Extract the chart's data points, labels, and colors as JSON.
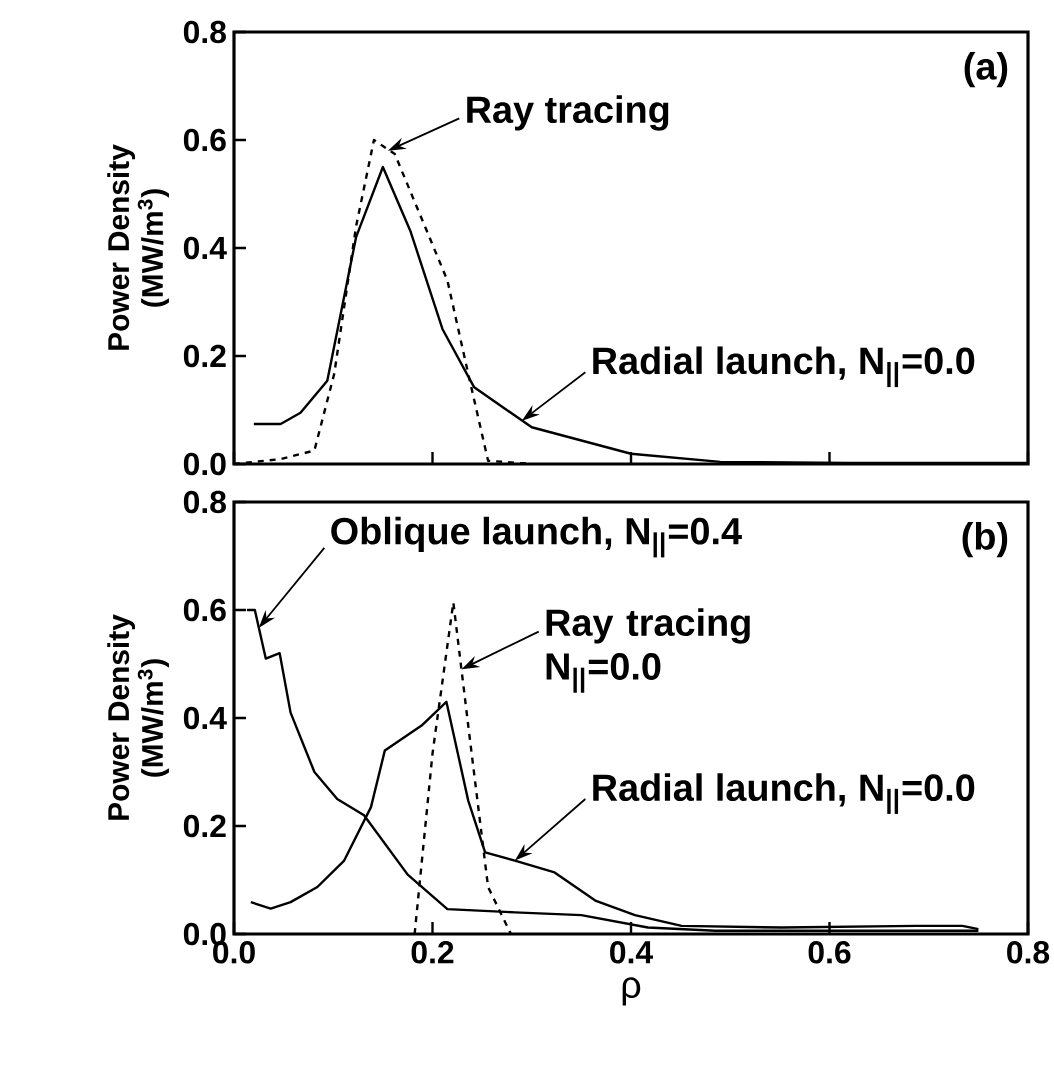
{
  "chart_data": [
    {
      "type": "line",
      "ylabel": "Power Density (MW/m$^{3}$)",
      "xlim": [
        0,
        0.8
      ],
      "ylim": [
        0,
        0.8
      ],
      "xticks": [
        0,
        0.2,
        0.4,
        0.6,
        0.8
      ],
      "yticks": [
        {
          "value": 0,
          "label": "0.0"
        },
        {
          "value": 0.2,
          "label": "0.2"
        },
        {
          "value": 0.4,
          "label": "0.4"
        },
        {
          "value": 0.6,
          "label": "0.6"
        },
        {
          "value": 0.8,
          "label": "0.8"
        }
      ],
      "tick_labels": "y",
      "series": [
        {
          "color": "#000000",
          "line_style": "solid",
          "x": [
            0.02,
            0.047,
            0.067,
            0.094,
            0.123,
            0.15,
            0.178,
            0.21,
            0.242,
            0.3,
            0.4,
            0.49,
            0.62,
            0.8
          ],
          "values": [
            0.074,
            0.074,
            0.095,
            0.154,
            0.42,
            0.55,
            0.43,
            0.25,
            0.142,
            0.068,
            0.019,
            0.004,
            0.002,
            0.002
          ]
        },
        {
          "color": "#000000",
          "line_style": "dashed",
          "x": [
            0,
            0.047,
            0.081,
            0.101,
            0.123,
            0.141,
            0.162,
            0.215,
            0.236,
            0.256,
            0.3
          ],
          "values": [
            0,
            0.009,
            0.025,
            0.167,
            0.44,
            0.6,
            0.574,
            0.34,
            0.167,
            0.006,
            0
          ]
        }
      ],
      "annotations": [
        "(a)",
        {
          "text": "Ray tracing",
          "x": 0.155,
          "y": 0.58
        },
        {
          "text": "Radial launch, N$_{||}$=0.0",
          "x": 0.29,
          "y": 0.08
        }
      ]
    },
    {
      "type": "line",
      "xlabel": "ρ",
      "ylabel": "Power Density (MW/m$^{3}$)",
      "xlim": [
        0,
        0.8
      ],
      "ylim": [
        0,
        0.8
      ],
      "xticks": [
        {
          "value": 0,
          "label": "0.0"
        },
        {
          "value": 0.2,
          "label": "0.2"
        },
        {
          "value": 0.4,
          "label": "0.4"
        },
        {
          "value": 0.6,
          "label": "0.6"
        },
        {
          "value": 0.8,
          "label": "0.8"
        }
      ],
      "yticks": [
        {
          "value": 0,
          "label": "0.0"
        },
        {
          "value": 0.2,
          "label": "0.2"
        },
        {
          "value": 0.4,
          "label": "0.4"
        },
        {
          "value": 0.6,
          "label": "0.6"
        },
        {
          "value": 0.8,
          "label": "0.8"
        }
      ],
      "series": [
        {
          "color": "#000000",
          "line_style": "solid",
          "x": [
            0.013,
            0.021,
            0.032,
            0.046,
            0.057,
            0.081,
            0.104,
            0.131,
            0.175,
            0.215,
            0.283,
            0.35,
            0.417,
            0.485,
            0.62,
            0.75
          ],
          "values": [
            0.6,
            0.6,
            0.51,
            0.52,
            0.41,
            0.3,
            0.25,
            0.22,
            0.11,
            0.046,
            0.04,
            0.035,
            0.012,
            0.006,
            0.006,
            0.006
          ]
        },
        {
          "color": "#000000",
          "line_style": "solid",
          "x": [
            0.017,
            0.037,
            0.057,
            0.084,
            0.111,
            0.138,
            0.152,
            0.189,
            0.214,
            0.236,
            0.253,
            0.283,
            0.323,
            0.364,
            0.404,
            0.451,
            0.552,
            0.687,
            0.734,
            0.75
          ],
          "values": [
            0.059,
            0.047,
            0.059,
            0.087,
            0.136,
            0.235,
            0.34,
            0.386,
            0.43,
            0.247,
            0.151,
            0.136,
            0.114,
            0.062,
            0.035,
            0.015,
            0.012,
            0.015,
            0.015,
            0.009
          ]
        },
        {
          "color": "#000000",
          "line_style": "dashed",
          "x": [
            0.182,
            0.2,
            0.221,
            0.237,
            0.256,
            0.279
          ],
          "values": [
            0,
            0.334,
            0.614,
            0.371,
            0.087,
            0
          ]
        }
      ],
      "annotations": [
        "(b)",
        {
          "text": "Oblique launch, N$_{||}$=0.4",
          "x": 0.025,
          "y": 0.567
        },
        {
          "text": "Ray tracing N$_{||}$=0.0",
          "x": 0.229,
          "y": 0.49
        },
        {
          "text": "Radial launch, N$_{||}$=0.0",
          "x": 0.283,
          "y": 0.136
        }
      ]
    }
  ]
}
